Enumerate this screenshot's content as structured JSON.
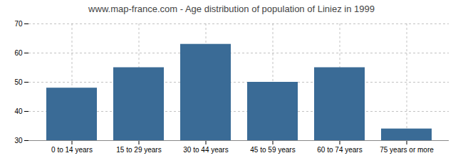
{
  "chart_data": {
    "type": "bar",
    "title": "www.map-france.com - Age distribution of population of Liniez in 1999",
    "categories": [
      "0 to 14 years",
      "15 to 29 years",
      "30 to 44 years",
      "45 to 59 years",
      "60 to 74 years",
      "75 years or more"
    ],
    "values": [
      48,
      55,
      63,
      50,
      55,
      34
    ],
    "color": "#3a6b96",
    "ylim": [
      30,
      70
    ],
    "yticks": [
      30,
      40,
      50,
      60,
      70
    ],
    "grid": true
  }
}
